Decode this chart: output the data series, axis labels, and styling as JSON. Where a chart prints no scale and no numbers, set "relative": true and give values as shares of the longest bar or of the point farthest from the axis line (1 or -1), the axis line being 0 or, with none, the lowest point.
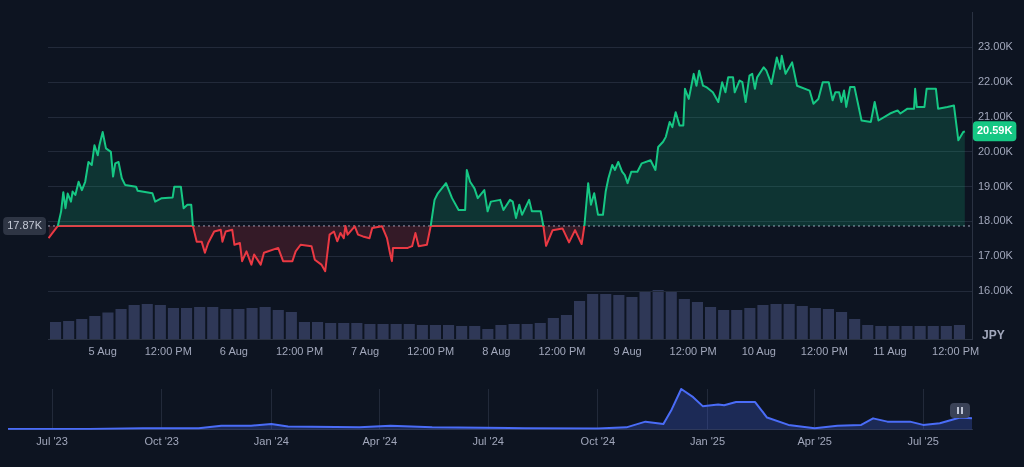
{
  "chart_data": [
    {
      "type": "line",
      "ylabel": "JPY",
      "xlim": [
        "2025-08-04T14:00",
        "2025-08-11T15:00"
      ],
      "xticks": [
        {
          "value": "2025-08-05T00:00",
          "label": "5 Aug"
        },
        {
          "value": "2025-08-05T12:00",
          "label": "12:00 PM"
        },
        {
          "value": "2025-08-06T00:00",
          "label": "6 Aug"
        },
        {
          "value": "2025-08-06T12:00",
          "label": "12:00 PM"
        },
        {
          "value": "2025-08-07T00:00",
          "label": "7 Aug"
        },
        {
          "value": "2025-08-07T12:00",
          "label": "12:00 PM"
        },
        {
          "value": "2025-08-08T00:00",
          "label": "8 Aug"
        },
        {
          "value": "2025-08-08T12:00",
          "label": "12:00 PM"
        },
        {
          "value": "2025-08-09T00:00",
          "label": "9 Aug"
        },
        {
          "value": "2025-08-09T12:00",
          "label": "12:00 PM"
        },
        {
          "value": "2025-08-10T00:00",
          "label": "10 Aug"
        },
        {
          "value": "2025-08-10T12:00",
          "label": "12:00 PM"
        },
        {
          "value": "2025-08-11T00:00",
          "label": "11 Aug"
        },
        {
          "value": "2025-08-11T12:00",
          "label": "12:00 PM"
        }
      ],
      "ylim": [
        14600,
        24000
      ],
      "yticks": [
        {
          "value": 16000,
          "label": "16.00K"
        },
        {
          "value": 17000,
          "label": "17.00K"
        },
        {
          "value": 18000,
          "label": "18.00K"
        },
        {
          "value": 19000,
          "label": "19.00K"
        },
        {
          "value": 20000,
          "label": "20.00K"
        },
        {
          "value": 21000,
          "label": "21.00K"
        },
        {
          "value": 22000,
          "label": "22.00K"
        },
        {
          "value": 23000,
          "label": "23.00K"
        }
      ],
      "series": [
        {
          "color": "#16c784",
          "x": [
            "2025-08-04T15:48",
            "2025-08-04T16:24",
            "2025-08-04T16:48",
            "2025-08-04T17:12",
            "2025-08-04T17:36",
            "2025-08-04T18:12",
            "2025-08-04T18:30",
            "2025-08-04T19:00",
            "2025-08-04T19:36",
            "2025-08-04T20:12",
            "2025-08-04T20:48",
            "2025-08-04T21:24",
            "2025-08-04T22:00",
            "2025-08-04T22:30",
            "2025-08-04T23:06",
            "2025-08-04T23:24",
            "2025-08-05T00:00",
            "2025-08-05T00:36",
            "2025-08-05T01:30",
            "2025-08-05T01:54",
            "2025-08-05T02:18",
            "2025-08-05T02:54",
            "2025-08-05T03:30",
            "2025-08-05T04:06",
            "2025-08-05T06:06",
            "2025-08-05T06:24",
            "2025-08-05T09:06",
            "2025-08-05T09:36",
            "2025-08-05T10:48",
            "2025-08-05T12:48",
            "2025-08-05T13:06",
            "2025-08-05T14:18",
            "2025-08-05T14:48",
            "2025-08-05T15:30",
            "2025-08-05T16:12",
            "2025-08-05T16:30",
            "2025-08-05T16:36",
            "2025-08-07T11:54",
            "2025-08-07T12:00",
            "2025-08-07T12:42",
            "2025-08-07T13:18",
            "2025-08-07T14:48",
            "2025-08-07T15:54",
            "2025-08-07T17:06",
            "2025-08-07T18:18",
            "2025-08-07T18:36",
            "2025-08-07T19:12",
            "2025-08-07T20:00",
            "2025-08-07T20:36",
            "2025-08-07T21:48",
            "2025-08-07T22:24",
            "2025-08-07T23:00",
            "2025-08-08T00:42",
            "2025-08-08T01:18",
            "2025-08-08T02:30",
            "2025-08-08T03:00",
            "2025-08-08T03:36",
            "2025-08-08T04:12",
            "2025-08-08T04:42",
            "2025-08-08T06:00",
            "2025-08-08T06:30",
            "2025-08-08T08:06",
            "2025-08-08T08:36",
            "2025-08-08T08:42",
            "2025-08-08T16:00",
            "2025-08-08T16:06",
            "2025-08-08T16:48",
            "2025-08-08T17:18",
            "2025-08-08T17:54",
            "2025-08-08T18:36",
            "2025-08-08T19:30",
            "2025-08-08T20:00",
            "2025-08-08T20:30",
            "2025-08-08T21:12",
            "2025-08-08T21:42",
            "2025-08-08T22:18",
            "2025-08-08T23:00",
            "2025-08-08T23:30",
            "2025-08-09T00:00",
            "2025-08-09T00:42",
            "2025-08-09T01:48",
            "2025-08-09T02:36",
            "2025-08-09T04:12",
            "2025-08-09T05:06",
            "2025-08-09T05:36",
            "2025-08-09T06:30",
            "2025-08-09T07:00",
            "2025-08-09T07:42",
            "2025-08-09T08:12",
            "2025-08-09T08:48",
            "2025-08-09T09:30",
            "2025-08-09T10:12",
            "2025-08-09T10:30",
            "2025-08-09T11:12",
            "2025-08-09T12:06",
            "2025-08-09T12:36",
            "2025-08-09T13:06",
            "2025-08-09T13:48",
            "2025-08-09T14:24",
            "2025-08-09T15:36",
            "2025-08-09T16:36",
            "2025-08-09T17:18",
            "2025-08-09T17:54",
            "2025-08-09T18:24",
            "2025-08-09T19:18",
            "2025-08-09T19:36",
            "2025-08-09T20:30",
            "2025-08-09T21:00",
            "2025-08-09T21:36",
            "2025-08-09T22:18",
            "2025-08-09T22:48",
            "2025-08-09T23:18",
            "2025-08-09T23:42",
            "2025-08-10T00:54",
            "2025-08-10T01:24",
            "2025-08-10T02:18",
            "2025-08-10T03:00",
            "2025-08-10T03:18",
            "2025-08-10T03:54",
            "2025-08-10T04:12",
            "2025-08-10T04:54",
            "2025-08-10T06:06",
            "2025-08-10T07:00",
            "2025-08-10T09:18",
            "2025-08-10T10:00",
            "2025-08-10T10:54",
            "2025-08-10T11:42",
            "2025-08-10T12:48",
            "2025-08-10T13:30",
            "2025-08-10T14:00",
            "2025-08-10T14:42",
            "2025-08-10T15:06",
            "2025-08-10T15:36",
            "2025-08-10T16:00",
            "2025-08-10T16:42",
            "2025-08-10T17:30",
            "2025-08-10T18:48",
            "2025-08-10T20:30",
            "2025-08-10T21:12",
            "2025-08-10T21:54",
            "2025-08-11T00:00",
            "2025-08-11T01:24",
            "2025-08-11T01:54",
            "2025-08-11T03:12",
            "2025-08-11T04:24",
            "2025-08-11T04:36",
            "2025-08-11T04:54",
            "2025-08-11T06:18",
            "2025-08-11T06:42",
            "2025-08-11T08:24",
            "2025-08-11T08:48",
            "2025-08-11T10:30",
            "2025-08-11T11:42",
            "2025-08-11T12:30",
            "2025-08-11T13:24",
            "2025-08-11T13:42"
          ],
          "values": [
            17870,
            18290,
            18840,
            18380,
            18800,
            18570,
            18860,
            18760,
            19140,
            18900,
            19140,
            19710,
            19620,
            20190,
            19900,
            20190,
            20570,
            20100,
            20000,
            19290,
            19670,
            19710,
            19240,
            19050,
            19000,
            18880,
            18810,
            18570,
            18670,
            18690,
            19000,
            19000,
            18380,
            18480,
            18480,
            17870,
            null,
            null,
            17870,
            18620,
            18810,
            19100,
            18670,
            18330,
            18330,
            19480,
            19140,
            18950,
            18670,
            18900,
            18290,
            18570,
            18620,
            18330,
            18620,
            18570,
            18100,
            18480,
            18190,
            18620,
            18290,
            18290,
            17870,
            null,
            null,
            17870,
            19100,
            18480,
            18810,
            18190,
            18190,
            18860,
            19240,
            19620,
            19480,
            19710,
            19430,
            19330,
            19100,
            19430,
            19430,
            19670,
            19760,
            19480,
            20140,
            20290,
            20430,
            20860,
            20710,
            21140,
            20760,
            20760,
            21810,
            21520,
            22240,
            21900,
            22330,
            21900,
            21860,
            21710,
            21430,
            22000,
            21710,
            22140,
            22140,
            21710,
            22050,
            22000,
            21430,
            22190,
            22240,
            21810,
            22140,
            22430,
            22330,
            21950,
            22480,
            22710,
            22380,
            22760,
            22240,
            22570,
            21900,
            21760,
            21380,
            21520,
            22000,
            22000,
            21480,
            21710,
            21710,
            21430,
            21760,
            21290,
            21860,
            21860,
            20900,
            20860,
            21430,
            20900,
            21100,
            21190,
            21100,
            21240,
            21240,
            21810,
            21290,
            21290,
            21810,
            21810,
            21240,
            21290,
            21330,
            20330,
            20570,
            20590
          ]
        },
        {
          "color": "#ea3943",
          "x": [
            "2025-08-04T14:06",
            "2025-08-04T15:48",
            "2025-08-05T16:30",
            "2025-08-05T17:12",
            "2025-08-05T18:06",
            "2025-08-05T18:42",
            "2025-08-05T19:18",
            "2025-08-05T20:24",
            "2025-08-05T21:36",
            "2025-08-05T21:54",
            "2025-08-05T22:30",
            "2025-08-05T23:42",
            "2025-08-06T00:06",
            "2025-08-06T01:06",
            "2025-08-06T01:30",
            "2025-08-06T02:18",
            "2025-08-06T03:12",
            "2025-08-06T03:42",
            "2025-08-06T04:54",
            "2025-08-06T05:30",
            "2025-08-06T08:06",
            "2025-08-06T09:00",
            "2025-08-06T10:42",
            "2025-08-06T11:18",
            "2025-08-06T12:12",
            "2025-08-06T14:12",
            "2025-08-06T14:48",
            "2025-08-06T16:00",
            "2025-08-06T16:42",
            "2025-08-06T17:30",
            "2025-08-06T18:18",
            "2025-08-06T18:54",
            "2025-08-06T19:30",
            "2025-08-06T20:06",
            "2025-08-06T20:24",
            "2025-08-06T20:48",
            "2025-08-06T22:06",
            "2025-08-06T22:42",
            "2025-08-06T23:36",
            "2025-08-07T00:48",
            "2025-08-07T01:18",
            "2025-08-07T03:06",
            "2025-08-07T04:00",
            "2025-08-07T04:36",
            "2025-08-07T04:54",
            "2025-08-07T05:06",
            "2025-08-07T07:48",
            "2025-08-07T08:36",
            "2025-08-07T09:12",
            "2025-08-07T09:48",
            "2025-08-07T11:18",
            "2025-08-07T12:00",
            "2025-08-08T08:36",
            "2025-08-08T09:06",
            "2025-08-08T10:18",
            "2025-08-08T12:06",
            "2025-08-08T13:18",
            "2025-08-08T14:24",
            "2025-08-08T15:36",
            "2025-08-08T16:06"
          ],
          "values": [
            17520,
            17870,
            17870,
            17420,
            17420,
            17100,
            17380,
            17710,
            17760,
            17420,
            17710,
            17760,
            17330,
            17380,
            16860,
            17140,
            16760,
            17050,
            16760,
            17100,
            17240,
            16860,
            16860,
            17140,
            17330,
            17290,
            16900,
            16760,
            16570,
            17620,
            17710,
            17430,
            17670,
            17520,
            17870,
            17620,
            17860,
            17620,
            17570,
            17520,
            17810,
            17860,
            17520,
            17050,
            16860,
            17240,
            17240,
            17290,
            17670,
            17290,
            17330,
            17870,
            17870,
            17300,
            17750,
            17800,
            17400,
            17750,
            17350,
            17870
          ]
        }
      ],
      "ref_lines": [
        {
          "axis": "y",
          "value": 17870,
          "label": "17.87K",
          "line_style": "dotted",
          "color": "#a1a7bb"
        }
      ],
      "annotations": [
        {
          "text": "20.59K",
          "x": "2025-08-11T13:42",
          "y": 20590
        }
      ],
      "grid": "y",
      "legend": false,
      "marker": "none",
      "line_style": "solid"
    },
    {
      "type": "bar",
      "relative": true,
      "tick_labels": false,
      "color": "#2f3857",
      "categories": [
        null,
        null,
        null,
        null,
        null,
        null,
        null,
        null,
        null,
        null,
        null,
        null,
        null,
        null,
        null,
        null,
        null,
        null,
        null,
        null,
        null,
        null,
        null,
        null,
        null,
        null,
        null,
        null,
        null,
        null,
        null,
        null,
        null,
        null,
        null,
        null,
        null,
        null,
        null,
        null,
        null,
        null,
        null,
        null,
        null,
        null,
        null,
        null,
        null,
        null,
        null,
        null,
        null,
        null,
        null,
        null,
        null,
        null,
        null,
        null,
        null,
        null,
        null,
        null,
        null,
        null,
        null,
        null,
        null,
        null
      ],
      "values": [
        0.36,
        0.38,
        0.42,
        0.48,
        0.55,
        0.62,
        0.7,
        0.72,
        0.7,
        0.64,
        0.64,
        0.66,
        0.66,
        0.62,
        0.62,
        0.64,
        0.66,
        0.6,
        0.56,
        0.36,
        0.36,
        0.34,
        0.34,
        0.34,
        0.32,
        0.32,
        0.32,
        0.32,
        0.3,
        0.3,
        0.3,
        0.28,
        0.28,
        0.22,
        0.3,
        0.32,
        0.32,
        0.34,
        0.44,
        0.5,
        0.78,
        0.92,
        0.92,
        0.9,
        0.86,
        0.98,
        1,
        0.98,
        0.82,
        0.76,
        0.66,
        0.6,
        0.6,
        0.64,
        0.7,
        0.72,
        0.72,
        0.68,
        0.64,
        0.62,
        0.56,
        0.42,
        0.3,
        0.28,
        0.28,
        0.28,
        0.28,
        0.28,
        0.28,
        0.3
      ],
      "grid": false,
      "legend": false
    },
    {
      "type": "area",
      "relative": true,
      "tick_labels": "x",
      "color": "#4a6cf7",
      "xlim": [
        "2023-05-25",
        "2025-08-11"
      ],
      "xticks": [
        {
          "value": "2023-07",
          "label": "Jul '23"
        },
        {
          "value": "2023-10",
          "label": "Oct '23"
        },
        {
          "value": "2024-01",
          "label": "Jan '24"
        },
        {
          "value": "2024-04",
          "label": "Apr '24"
        },
        {
          "value": "2024-07",
          "label": "Jul '24"
        },
        {
          "value": "2024-10",
          "label": "Oct '24"
        },
        {
          "value": "2025-01",
          "label": "Jan '25"
        },
        {
          "value": "2025-04",
          "label": "Apr '25"
        },
        {
          "value": "2025-07",
          "label": "Jul '25"
        }
      ],
      "x": [
        "2023-05-25",
        "2023-08-01",
        "2023-09-15",
        "2023-11-01",
        "2023-11-20",
        "2023-12-15",
        "2024-01-01",
        "2024-01-15",
        "2024-03-15",
        "2024-04-10",
        "2024-05-15",
        "2024-08-01",
        "2024-10-01",
        "2024-10-25",
        "2024-11-10",
        "2024-11-25",
        "2024-12-02",
        "2024-12-10",
        "2024-12-20",
        "2024-12-28",
        "2025-01-10",
        "2025-01-15",
        "2025-01-25",
        "2025-02-10",
        "2025-02-20",
        "2025-03-10",
        "2025-04-01",
        "2025-04-20",
        "2025-05-10",
        "2025-05-20",
        "2025-06-01",
        "2025-06-20",
        "2025-07-01",
        "2025-07-15",
        "2025-08-01",
        "2025-08-11"
      ],
      "values": [
        0.02,
        0.02,
        0.04,
        0.04,
        0.1,
        0.1,
        0.14,
        0.08,
        0.06,
        0.1,
        0.06,
        0.04,
        0.03,
        0.06,
        0.2,
        0.14,
        0.5,
        1,
        0.8,
        0.58,
        0.62,
        0.6,
        0.68,
        0.68,
        0.3,
        0.12,
        0.04,
        0.1,
        0.12,
        0.28,
        0.2,
        0.2,
        0.12,
        0.16,
        0.3,
        0.28
      ],
      "grid": "x",
      "legend": false,
      "marker": "none"
    }
  ]
}
